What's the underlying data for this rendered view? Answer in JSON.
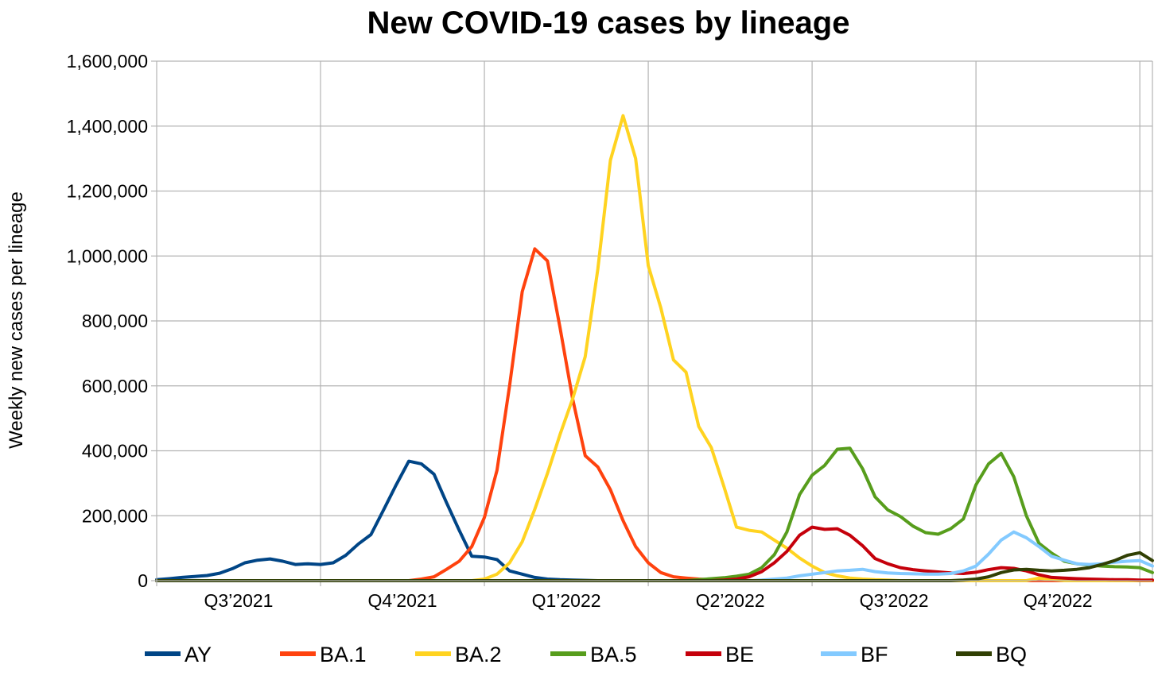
{
  "chart_data": {
    "type": "line",
    "title": "New COVID-19 cases by lineage",
    "xlabel": "",
    "ylabel": "Weekly new cases per lineage",
    "ylim": [
      0,
      1600000
    ],
    "yticks": [
      0,
      200000,
      400000,
      600000,
      800000,
      1000000,
      1200000,
      1400000,
      1600000
    ],
    "ytick_labels": [
      "0",
      "200,000",
      "400,000",
      "600,000",
      "800,000",
      "1,000,000",
      "1,200,000",
      "1,400,000",
      "1,600,000"
    ],
    "xtick_labels": [
      "Q3’2021",
      "Q4’2021",
      "Q1’2022",
      "Q2’2022",
      "Q3’2022",
      "Q4’2022"
    ],
    "x_unit": "week",
    "weeks_per_quarter": 13,
    "grid": true,
    "legend_position": "bottom",
    "series": [
      {
        "name": "AY",
        "color": "#004586",
        "values": [
          3000,
          6000,
          10000,
          13000,
          16000,
          23000,
          37000,
          55000,
          63000,
          67000,
          60000,
          50000,
          52000,
          50000,
          55000,
          78000,
          113000,
          142000,
          218000,
          295000,
          368000,
          360000,
          328000,
          240000,
          155000,
          75000,
          73000,
          65000,
          30000,
          20000,
          10000,
          5000,
          3000,
          2000,
          1000,
          0,
          0,
          0,
          0,
          0,
          0,
          0,
          0,
          0,
          0,
          0,
          0,
          0,
          0,
          0,
          0,
          0,
          0,
          0,
          0,
          0,
          0,
          0,
          0,
          0,
          0,
          0,
          0,
          0,
          0,
          0,
          0,
          0,
          0,
          0,
          0,
          0,
          0,
          0,
          0,
          0,
          0,
          0,
          0,
          0
        ]
      },
      {
        "name": "BA.1",
        "color": "#ff420e",
        "values": [
          0,
          0,
          0,
          0,
          0,
          0,
          0,
          0,
          0,
          0,
          0,
          0,
          0,
          0,
          0,
          0,
          0,
          0,
          0,
          0,
          0,
          5000,
          12000,
          35000,
          60000,
          105000,
          195000,
          340000,
          600000,
          890000,
          1022000,
          985000,
          780000,
          560000,
          385000,
          350000,
          280000,
          185000,
          105000,
          55000,
          25000,
          12000,
          8000,
          5000,
          3000,
          2000,
          1000,
          0,
          0,
          0,
          0,
          0,
          0,
          0,
          0,
          0,
          0,
          0,
          0,
          0,
          0,
          0,
          0,
          0,
          0,
          0,
          0,
          0,
          0,
          0,
          0,
          0,
          0,
          0,
          0,
          0,
          0,
          0,
          0,
          0
        ]
      },
      {
        "name": "BA.2",
        "color": "#ffd320",
        "values": [
          0,
          0,
          0,
          0,
          0,
          0,
          0,
          0,
          0,
          0,
          0,
          0,
          0,
          0,
          0,
          0,
          0,
          0,
          0,
          0,
          0,
          0,
          0,
          0,
          0,
          0,
          5000,
          20000,
          55000,
          120000,
          220000,
          330000,
          450000,
          560000,
          690000,
          960000,
          1295000,
          1432000,
          1300000,
          970000,
          840000,
          680000,
          642000,
          475000,
          410000,
          290000,
          165000,
          155000,
          150000,
          125000,
          100000,
          70000,
          45000,
          25000,
          15000,
          8000,
          5000,
          3000,
          2000,
          0,
          0,
          0,
          0,
          0,
          0,
          0,
          0,
          0,
          0,
          0,
          8000,
          4000,
          0,
          0,
          0,
          0,
          0,
          0,
          0,
          0
        ]
      },
      {
        "name": "BA.5",
        "color": "#579d1c",
        "values": [
          0,
          0,
          0,
          0,
          0,
          0,
          0,
          0,
          0,
          0,
          0,
          0,
          0,
          0,
          0,
          0,
          0,
          0,
          0,
          0,
          0,
          0,
          0,
          0,
          0,
          0,
          0,
          0,
          0,
          0,
          0,
          0,
          0,
          0,
          0,
          0,
          0,
          0,
          0,
          0,
          0,
          0,
          0,
          3000,
          6000,
          9000,
          14000,
          20000,
          40000,
          80000,
          150000,
          265000,
          325000,
          355000,
          405000,
          408000,
          345000,
          258000,
          218000,
          198000,
          168000,
          148000,
          143000,
          160000,
          190000,
          295000,
          360000,
          392000,
          320000,
          200000,
          115000,
          85000,
          60000,
          52000,
          48000,
          45000,
          43000,
          42000,
          40000,
          25000
        ]
      },
      {
        "name": "BE",
        "color": "#c5000b",
        "values": [
          0,
          0,
          0,
          0,
          0,
          0,
          0,
          0,
          0,
          0,
          0,
          0,
          0,
          0,
          0,
          0,
          0,
          0,
          0,
          0,
          0,
          0,
          0,
          0,
          0,
          0,
          0,
          0,
          0,
          0,
          0,
          0,
          0,
          0,
          0,
          0,
          0,
          0,
          0,
          0,
          0,
          0,
          0,
          0,
          0,
          2000,
          5000,
          12000,
          28000,
          55000,
          90000,
          140000,
          165000,
          158000,
          160000,
          140000,
          108000,
          68000,
          52000,
          40000,
          34000,
          30000,
          27000,
          24000,
          22000,
          26000,
          34000,
          40000,
          38000,
          30000,
          18000,
          10000,
          8000,
          6000,
          5000,
          4000,
          3000,
          3000,
          2000,
          2000
        ]
      },
      {
        "name": "BF",
        "color": "#83caff",
        "values": [
          0,
          0,
          0,
          0,
          0,
          0,
          0,
          0,
          0,
          0,
          0,
          0,
          0,
          0,
          0,
          0,
          0,
          0,
          0,
          0,
          0,
          0,
          0,
          0,
          0,
          0,
          0,
          0,
          0,
          0,
          0,
          0,
          0,
          0,
          0,
          0,
          0,
          0,
          0,
          0,
          0,
          0,
          0,
          0,
          0,
          0,
          0,
          0,
          2000,
          5000,
          8000,
          15000,
          20000,
          25000,
          30000,
          32000,
          35000,
          28000,
          24000,
          22000,
          21000,
          20000,
          20000,
          22000,
          30000,
          45000,
          82000,
          125000,
          150000,
          132000,
          105000,
          75000,
          63000,
          52000,
          50000,
          52000,
          57000,
          60000,
          62000,
          45000
        ]
      },
      {
        "name": "BQ",
        "color": "#314004",
        "values": [
          0,
          0,
          0,
          0,
          0,
          0,
          0,
          0,
          0,
          0,
          0,
          0,
          0,
          0,
          0,
          0,
          0,
          0,
          0,
          0,
          0,
          0,
          0,
          0,
          0,
          0,
          0,
          0,
          0,
          0,
          0,
          0,
          0,
          0,
          0,
          0,
          0,
          0,
          0,
          0,
          0,
          0,
          0,
          0,
          0,
          0,
          0,
          0,
          0,
          0,
          0,
          0,
          0,
          0,
          0,
          0,
          0,
          0,
          0,
          0,
          0,
          0,
          0,
          0,
          2000,
          5000,
          12000,
          25000,
          33000,
          35000,
          32000,
          30000,
          32000,
          35000,
          40000,
          50000,
          62000,
          78000,
          86000,
          62000
        ]
      }
    ]
  }
}
